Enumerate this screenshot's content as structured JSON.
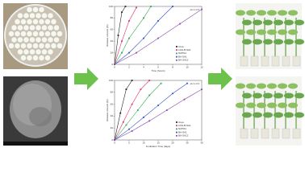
{
  "chart_data": [
    {
      "type": "line",
      "title": "pH 1.4:3",
      "x_label": "Time (hours)",
      "y_label": "Release amount (%)",
      "xlim": [
        0,
        12
      ],
      "xticks": [
        0,
        2,
        4,
        6,
        8,
        10,
        12
      ],
      "ylim": [
        0,
        100
      ],
      "yticks": [
        0,
        20,
        40,
        60,
        80,
        100
      ],
      "series": [
        {
          "name": "Urea",
          "color": "#222222",
          "x": [
            0,
            0.5,
            1,
            1.5
          ],
          "values": [
            0,
            50,
            90,
            100
          ]
        },
        {
          "name": "LDH-B-SA1",
          "color": "#e0306a",
          "x": [
            0,
            1,
            2,
            3
          ],
          "values": [
            0,
            40,
            75,
            98
          ]
        },
        {
          "name": "N2PO4",
          "color": "#2fa84f",
          "x": [
            0,
            1,
            2,
            4,
            5
          ],
          "values": [
            0,
            20,
            45,
            80,
            100
          ]
        },
        {
          "name": "BA-SA1",
          "color": "#3050c8",
          "x": [
            0,
            2,
            4,
            6,
            8
          ],
          "values": [
            0,
            20,
            45,
            75,
            100
          ]
        },
        {
          "name": "BA-SA12",
          "color": "#8a4aa8",
          "x": [
            0,
            3,
            6,
            9,
            12
          ],
          "values": [
            0,
            20,
            45,
            70,
            95
          ]
        }
      ]
    },
    {
      "type": "line",
      "title": "pH 1.4:3",
      "x_label": "Incubation Time (days)",
      "y_label": "Release amount (%)",
      "xlim": [
        0,
        30
      ],
      "xticks": [
        0,
        5,
        10,
        15,
        20,
        25,
        30
      ],
      "ylim": [
        0,
        100
      ],
      "yticks": [
        0,
        20,
        40,
        60,
        80,
        100
      ],
      "series": [
        {
          "name": "Urea",
          "color": "#222222",
          "x": [
            0,
            2,
            4,
            6
          ],
          "values": [
            0,
            45,
            85,
            100
          ]
        },
        {
          "name": "LDH-B-SA1",
          "color": "#e0306a",
          "x": [
            0,
            3,
            6,
            9,
            12
          ],
          "values": [
            0,
            30,
            60,
            85,
            100
          ]
        },
        {
          "name": "N2PO4",
          "color": "#2fa84f",
          "x": [
            0,
            4,
            8,
            12,
            16
          ],
          "values": [
            0,
            25,
            50,
            75,
            95
          ]
        },
        {
          "name": "BA-SA1",
          "color": "#3050c8",
          "x": [
            0,
            5,
            10,
            15,
            20,
            25
          ],
          "values": [
            0,
            18,
            38,
            58,
            78,
            95
          ]
        },
        {
          "name": "BA-SA12",
          "color": "#8a4aa8",
          "x": [
            0,
            6,
            12,
            18,
            24,
            30
          ],
          "values": [
            0,
            15,
            32,
            50,
            68,
            85
          ]
        }
      ]
    }
  ]
}
